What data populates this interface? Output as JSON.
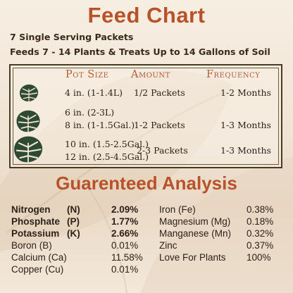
{
  "title": "Feed Chart",
  "subtitle_1": "7 Single Serving Packets",
  "subtitle_2": "Feeds 7 - 14 Plants & Treats Up to 14 Gallons of Soil",
  "table": {
    "headers": {
      "pot_size": "Pot Size",
      "amount": "Amount",
      "frequency": "Frequency"
    },
    "rows": [
      {
        "pot_1": "4 in. (1-1.4L)",
        "pot_2": "",
        "amount": "1/2 Packets",
        "frequency": "1-2 Months",
        "icon": "monstera-leaf-icon"
      },
      {
        "pot_1": "6 in. (2-3L)",
        "pot_2": "8 in. (1-1.5Gal.)",
        "amount": "1-2 Packets",
        "frequency": "1-3 Months",
        "icon": "monstera-leaf-icon"
      },
      {
        "pot_1": "10 in. (1.5-2.5Gal.)",
        "pot_2": "12 in. (2.5-4.5Gal.)",
        "amount": "2-3 Packets",
        "frequency": "1-3 Months",
        "icon": "monstera-leaf-icon"
      }
    ]
  },
  "analysis_title": "Guarenteed Analysis",
  "analysis_left": [
    {
      "name": "Nitrogen",
      "symbol": "(N)",
      "value": "2.09%",
      "bold": true
    },
    {
      "name": "Phosphate",
      "symbol": "(P)",
      "value": "1.77%",
      "bold": true
    },
    {
      "name": "Potassium",
      "symbol": "(K)",
      "value": "2.66%",
      "bold": true
    },
    {
      "name": "Boron (B)",
      "symbol": "",
      "value": "0.01%",
      "bold": false
    },
    {
      "name": "Calcium (Ca)",
      "symbol": "",
      "value": "11.58%",
      "bold": false
    },
    {
      "name": "Copper (Cu)",
      "symbol": "",
      "value": "0.01%",
      "bold": false
    }
  ],
  "analysis_right": [
    {
      "name": "Iron (Fe)",
      "value": "0.38%"
    },
    {
      "name": "Magnesium (Mg)",
      "value": "0.18%"
    },
    {
      "name": "Manganese (Mn)",
      "value": "0.32%"
    },
    {
      "name": "Zinc",
      "value": "0.37%"
    },
    {
      "name": "Love For Plants",
      "value": "100%"
    }
  ],
  "colors": {
    "title": "#b8522a",
    "header": "#b35a36",
    "text": "#2f2418",
    "leaf": "#2f4a32",
    "background": "#f2e6d6"
  }
}
